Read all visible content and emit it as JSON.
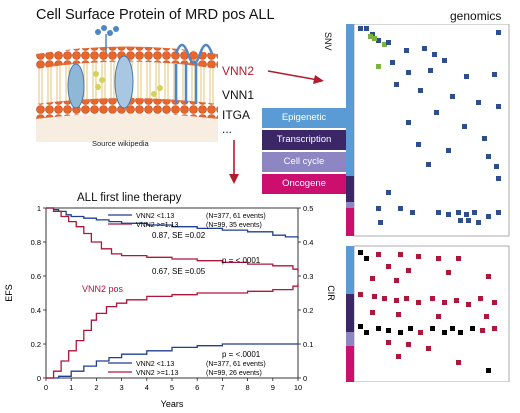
{
  "header": {
    "title": "Cell Surface Protein of MRD pos ALL",
    "source_caption": "Source wikipedia"
  },
  "genes": [
    "VNN2",
    "VNN1",
    "ITGA",
    "..."
  ],
  "genomics": {
    "title": "genomics",
    "snv_label": "SNV"
  },
  "legend": {
    "items": [
      {
        "label": "Epigenetic",
        "color": "#5b9bd5"
      },
      {
        "label": "Transcription",
        "color": "#3b2667"
      },
      {
        "label": "Cell cycle",
        "color": "#8e86c3"
      },
      {
        "label": "Oncogene",
        "color": "#cc0e6e"
      }
    ]
  },
  "colors": {
    "snv": "#2e4e8e",
    "snv_green": "#7cb342",
    "cnv": "#b0163a",
    "black": "#000000",
    "arrow": "#b01c2e"
  },
  "chart_data": {
    "type": "line",
    "title": "ALL first line therapy",
    "xlabel": "Years",
    "ylabel_left": "EFS",
    "ylabel_right": "CIR",
    "x_ticks": [
      "0",
      "1",
      "2",
      "3",
      "4",
      "5",
      "6",
      "7",
      "8",
      "9",
      "10"
    ],
    "y_left_ticks": [
      "0",
      "0.2",
      "0.4",
      "0.6",
      "0.8",
      "1"
    ],
    "y_right_ticks": [
      "0",
      "0.1",
      "0.2",
      "0.3",
      "0.4",
      "0.5"
    ],
    "xlim": [
      0,
      10
    ],
    "ylim_left": [
      0,
      1
    ],
    "ylim_right": [
      0,
      0.5
    ],
    "annotations": {
      "efs_low": "0.87, SE =0.02",
      "efs_high": "0.67, SE =0.05",
      "p_efs": "p = <.0001",
      "p_cir": "p = <.0001",
      "vnn2_pos": "VNN2 pos"
    },
    "legend_top": [
      {
        "label": "VNN2 <1.13",
        "stats": "(N=377, 61 events)",
        "color": "#1f3f8f"
      },
      {
        "label": "VNN2 >=1.13",
        "stats": "(N=99, 35 events)",
        "color": "#b0163a"
      }
    ],
    "legend_bottom": [
      {
        "label": "VNN2 <1.13",
        "stats": "(N=377, 61 events)",
        "color": "#1f3f8f"
      },
      {
        "label": "VNN2 >=1.13",
        "stats": "(N=99, 26 events)",
        "color": "#b0163a"
      }
    ],
    "series": [
      {
        "name": "VNN2 <1.13",
        "axis": "EFS",
        "color": "#1f3f8f",
        "x": [
          0,
          0.3,
          0.5,
          0.8,
          1,
          1.5,
          2,
          2.5,
          3,
          4,
          5,
          6,
          7,
          8,
          9,
          9.5,
          10
        ],
        "y": [
          1.0,
          0.99,
          0.98,
          0.96,
          0.95,
          0.94,
          0.93,
          0.92,
          0.91,
          0.9,
          0.89,
          0.88,
          0.87,
          0.86,
          0.84,
          0.83,
          0.82
        ]
      },
      {
        "name": "VNN2 >=1.13",
        "axis": "EFS",
        "color": "#b0163a",
        "x": [
          0,
          0.3,
          0.6,
          0.9,
          1.2,
          1.5,
          1.8,
          2.2,
          2.6,
          3,
          4,
          5,
          6,
          7,
          8,
          9,
          9.8,
          10
        ],
        "y": [
          1.0,
          0.98,
          0.95,
          0.92,
          0.89,
          0.85,
          0.8,
          0.76,
          0.73,
          0.72,
          0.71,
          0.7,
          0.69,
          0.68,
          0.67,
          0.66,
          0.64,
          0.62
        ]
      },
      {
        "name": "VNN2 <1.13",
        "axis": "CIR",
        "color": "#1f3f8f",
        "x": [
          0,
          0.5,
          1,
          1.5,
          2,
          2.5,
          3,
          4,
          5,
          6,
          7,
          8,
          9,
          10
        ],
        "y": [
          0.0,
          0.005,
          0.02,
          0.035,
          0.05,
          0.06,
          0.07,
          0.08,
          0.09,
          0.095,
          0.1,
          0.1,
          0.1,
          0.1
        ]
      },
      {
        "name": "VNN2 >=1.13",
        "axis": "CIR",
        "color": "#b0163a",
        "x": [
          0,
          0.3,
          0.6,
          0.9,
          1.2,
          1.5,
          1.8,
          2,
          2.4,
          2.8,
          3.2,
          4,
          5,
          6,
          7,
          8,
          9,
          9.8,
          10
        ],
        "y": [
          0.0,
          0.02,
          0.05,
          0.08,
          0.11,
          0.14,
          0.17,
          0.19,
          0.21,
          0.22,
          0.23,
          0.24,
          0.245,
          0.25,
          0.25,
          0.255,
          0.26,
          0.27,
          0.28
        ]
      }
    ]
  }
}
